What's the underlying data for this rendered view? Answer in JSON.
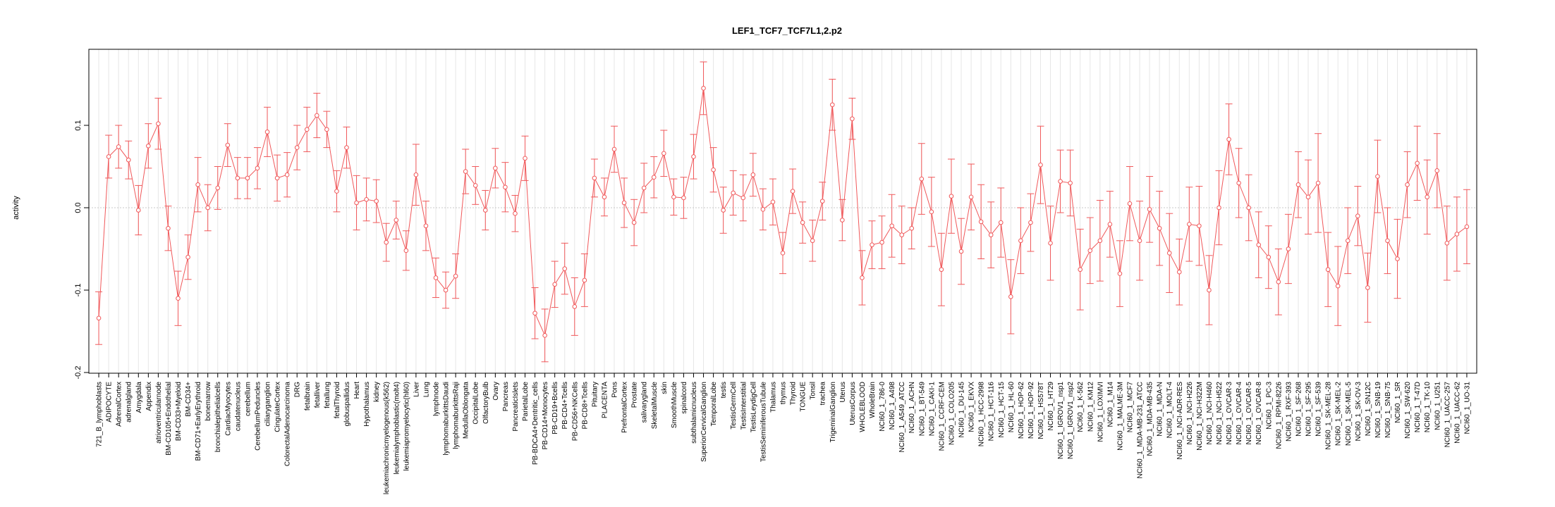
{
  "chart_data": {
    "type": "line",
    "title": "LEF1_TCF7_TCF7L1,2.p2",
    "xlabel": "",
    "ylabel": "activity",
    "ylim": [
      -0.2,
      0.2
    ],
    "yticks": [
      -0.2,
      -0.1,
      0.0,
      0.1
    ],
    "ytick_labels": [
      "-0.2",
      "-0.1",
      "0.0",
      "0.1"
    ],
    "grid": true,
    "series_color": "#F0585A",
    "grid_color": "#E6E6E6",
    "zero_line_color": "#C8C8C8",
    "categories": [
      "721_B_lymphoblasts",
      "ADIPOCYTE",
      "AdrenalCortex",
      "adrenalgland",
      "Amygdala",
      "Appendix",
      "atrioventricularnode",
      "BM-CD105+Endothelial",
      "BM-CD33+Myeloid",
      "BM-CD34+",
      "BM-CD71+EarlyErythroid",
      "bonemarrow",
      "bronchialepithelialcells",
      "CardiacMyocytes",
      "caudatenucleus",
      "cerebellum",
      "CerebellumPeduncles",
      "ciliaryganglion",
      "CingulateCortex",
      "ColorectalAdenocarcinoma",
      "DRG",
      "fetalbrain",
      "fetalliver",
      "fetallung",
      "fetalThyroid",
      "globuspallidus",
      "Heart",
      "Hypothalamus",
      "kidney",
      "leukemiachronicmyelogenous(k562)",
      "leukemialymphoblastic(molt4)",
      "leukemiapromyelocytic(hl60)",
      "Liver",
      "Lung",
      "lymphnode",
      "lymphomaburkittsDaudi",
      "lymphomaburkittsRaji",
      "MedullaOblongata",
      "OccipitalLobe",
      "OlfactoryBulb",
      "Ovary",
      "Pancreas",
      "PancreaticIslets",
      "ParietalLobe",
      "PB-BDCA4+Dentritic_cells",
      "PB-CD14+Monocytes",
      "PB-CD19+Bcells",
      "PB-CD4+Tcells",
      "PB-CD56+NKCells",
      "PB-CD8+Tcells",
      "Pituitary",
      "PLACENTA",
      "Pons",
      "PrefrontalCortex",
      "Prostate",
      "salivarygland",
      "SkeletalMuscle",
      "skin",
      "SmoothMuscle",
      "spinalcord",
      "subthalamicnucleus",
      "SuperiorCervicalGanglion",
      "TemporalLobe",
      "testis",
      "TestisGermCell",
      "TestisInterstitial",
      "TestisLeydigCell",
      "TestisSeminiferousTubule",
      "Thalamus",
      "thymus",
      "Thyroid",
      "TONGUE",
      "Tonsil",
      "trachea",
      "TrigeminalGanglion",
      "Uterus",
      "UterusCorpus",
      "WHOLEBLOOD",
      "WholeBrain",
      "NCI60_1_786-0",
      "NCI60_1_A498",
      "NCI60_1_A549_ATCC",
      "NCI60_1_ACHN",
      "NCI60_1_BT-549",
      "NCI60_1_CAKI-1",
      "NCI60_1_CCRF-CEM",
      "NCI60_1_COLO205",
      "NCI60_1_DU-145",
      "NCI60_1_EKVX",
      "NCI60_1_HCC-2998",
      "NCI60_1_HCT-116",
      "NCI60_1_HCT-15",
      "NCI60_1_HL-60",
      "NCI60_1_HOP-62",
      "NCI60_1_HOP-92",
      "NCI60_1_HS578T",
      "NCI60_1_HT29",
      "NCI60_1_IGROV1_nsp1",
      "NCI60_1_IGROV1_nsp2",
      "NCI60_1_K-562",
      "NCI60_1_KM12",
      "NCI60_1_LOXIMVI",
      "NCI60_1_M14",
      "NCI60_1_MALME-3M",
      "NCI60_1_MCF7",
      "NCI60_1_MDA-MB-231_ATCC",
      "NCI60_1_MDA-MB-435",
      "NCI60_1_MDA-N",
      "NCI60_1_MOLT-4",
      "NCI60_1_NCI-ADR-RES",
      "NCI60_1_NCI-H226",
      "NCI60_1_NCI-H322M",
      "NCI60_1_NCI-H460",
      "NCI60_1_NCI-H522",
      "NCI60_1_OVCAR-3",
      "NCI60_1_OVCAR-4",
      "NCI60_1_OVCAR-5",
      "NCI60_1_OVCAR-8",
      "NCI60_1_PC-3",
      "NCI60_1_RPMI-8226",
      "NCI60_1_RXF-393",
      "NCI60_1_SF-268",
      "NCI60_1_SF-295",
      "NCI60_1_SF-539",
      "NCI60_1_SK-MEL-28",
      "NCI60_1_SK-MEL-2",
      "NCI60_1_SK-MEL-5",
      "NCI60_1_SK-OV-3",
      "NCI60_1_SN12C",
      "NCI60_1_SNB-19",
      "NCI60_1_SNB-75",
      "NCI60_1_SR",
      "NCI60_1_SW-620",
      "NCI60_1_T-47D",
      "NCI60_1_TK-10",
      "NCI60_1_U251",
      "NCI60_1_UACC-257",
      "NCI60_1_UACC-62",
      "NCI60_1_UO-31"
    ],
    "values": [
      -0.134,
      0.062,
      0.074,
      0.058,
      -0.003,
      0.075,
      0.102,
      -0.025,
      -0.11,
      -0.06,
      0.028,
      0.0,
      0.024,
      0.076,
      0.036,
      0.036,
      0.048,
      0.092,
      0.036,
      0.04,
      0.073,
      0.095,
      0.112,
      0.095,
      0.02,
      0.073,
      0.006,
      0.01,
      0.008,
      -0.042,
      -0.015,
      -0.052,
      0.04,
      -0.022,
      -0.085,
      -0.1,
      -0.083,
      0.044,
      0.027,
      -0.003,
      0.048,
      0.025,
      -0.007,
      0.06,
      -0.128,
      -0.155,
      -0.093,
      -0.074,
      -0.12,
      -0.088,
      0.036,
      0.013,
      0.071,
      0.006,
      -0.018,
      0.024,
      0.037,
      0.066,
      0.013,
      0.012,
      0.062,
      0.145,
      0.046,
      -0.003,
      0.018,
      0.012,
      0.04,
      -0.002,
      0.007,
      -0.055,
      0.02,
      -0.018,
      -0.04,
      0.008,
      0.125,
      -0.015,
      0.108,
      -0.085,
      -0.045,
      -0.042,
      -0.022,
      -0.033,
      -0.025,
      0.035,
      -0.005,
      -0.075,
      0.014,
      -0.053,
      0.013,
      -0.017,
      -0.033,
      -0.018,
      -0.108,
      -0.04,
      -0.018,
      0.052,
      -0.043,
      0.032,
      0.03,
      -0.075,
      -0.052,
      -0.04,
      -0.02,
      -0.08,
      0.005,
      -0.04,
      -0.002,
      -0.025,
      -0.055,
      -0.078,
      -0.02,
      -0.022,
      -0.1,
      0.0,
      0.083,
      0.03,
      0.0,
      -0.045,
      -0.06,
      -0.09,
      -0.05,
      0.028,
      0.013,
      0.03,
      -0.075,
      -0.095,
      -0.04,
      -0.01,
      -0.097,
      0.038,
      -0.04,
      -0.062,
      0.028,
      0.054,
      0.013,
      0.045,
      -0.043,
      -0.032,
      -0.023
    ],
    "errors": [
      0.032,
      0.026,
      0.026,
      0.023,
      0.03,
      0.027,
      0.031,
      0.027,
      0.033,
      0.027,
      0.033,
      0.028,
      0.026,
      0.026,
      0.025,
      0.025,
      0.025,
      0.03,
      0.028,
      0.027,
      0.027,
      0.027,
      0.027,
      0.022,
      0.025,
      0.025,
      0.033,
      0.026,
      0.026,
      0.023,
      0.023,
      0.024,
      0.037,
      0.03,
      0.024,
      0.022,
      0.027,
      0.027,
      0.023,
      0.024,
      0.024,
      0.03,
      0.022,
      0.027,
      0.031,
      0.032,
      0.028,
      0.031,
      0.035,
      0.032,
      0.023,
      0.023,
      0.028,
      0.03,
      0.028,
      0.03,
      0.025,
      0.028,
      0.022,
      0.025,
      0.027,
      0.032,
      0.027,
      0.028,
      0.027,
      0.028,
      0.026,
      0.025,
      0.028,
      0.025,
      0.027,
      0.025,
      0.025,
      0.023,
      0.031,
      0.025,
      0.025,
      0.033,
      0.029,
      0.032,
      0.038,
      0.035,
      0.025,
      0.043,
      0.042,
      0.044,
      0.045,
      0.04,
      0.04,
      0.045,
      0.04,
      0.042,
      0.045,
      0.04,
      0.035,
      0.047,
      0.045,
      0.038,
      0.04,
      0.049,
      0.04,
      0.049,
      0.04,
      0.04,
      0.045,
      0.048,
      0.04,
      0.045,
      0.048,
      0.04,
      0.045,
      0.048,
      0.042,
      0.045,
      0.043,
      0.042,
      0.04,
      0.04,
      0.038,
      0.04,
      0.042,
      0.04,
      0.045,
      0.06,
      0.045,
      0.048,
      0.04,
      0.036,
      0.042,
      0.044,
      0.04,
      0.048,
      0.04,
      0.045,
      0.045,
      0.045,
      0.045,
      0.045,
      0.045
    ]
  }
}
